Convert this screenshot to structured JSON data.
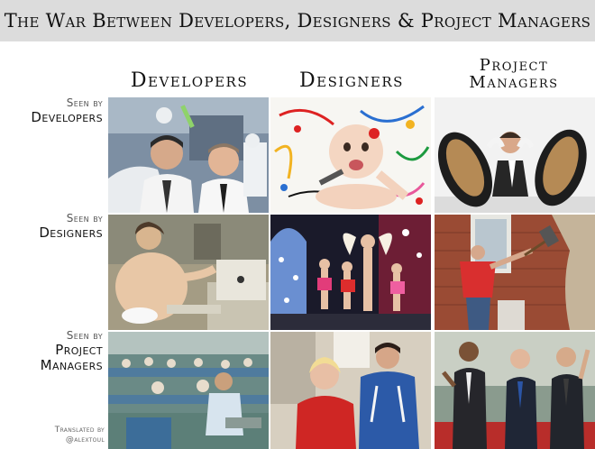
{
  "title": "The War Between Developers, Designers & Project Managers",
  "columns": [
    {
      "label": "Developers"
    },
    {
      "label": "Designers"
    },
    {
      "label_line1": "Project",
      "label_line2": "Managers"
    }
  ],
  "rows": [
    {
      "prefix": "Seen by",
      "label": "Developers"
    },
    {
      "prefix": "Seen by",
      "label": "Designers"
    },
    {
      "prefix": "Seen by",
      "label_line1": "Project",
      "label_line2": "Managers"
    }
  ],
  "credit": {
    "line1": "Translated by",
    "line2": "@alextoul"
  }
}
